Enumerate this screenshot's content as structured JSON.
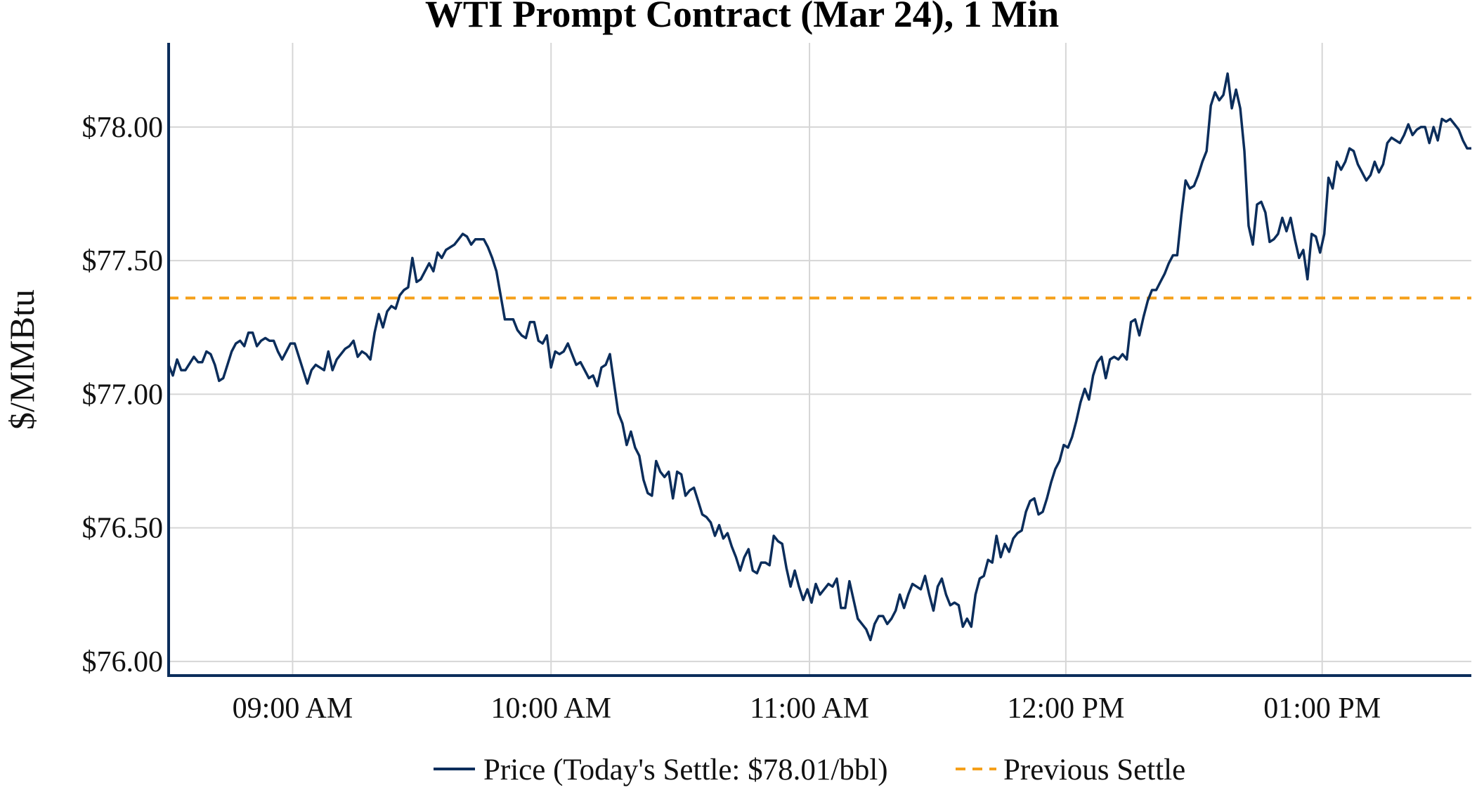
{
  "chart_data": {
    "type": "line",
    "title": "WTI Prompt Contract (Mar 24), 1 Min",
    "xlabel": "",
    "ylabel": "$/MMBtu",
    "ylim": [
      75.947,
      78.315
    ],
    "xlim": [
      0,
      310
    ],
    "x_ticks": [
      {
        "value": 29.5,
        "label": "09:00 AM"
      },
      {
        "value": 91,
        "label": "10:00 AM"
      },
      {
        "value": 152.5,
        "label": "11:00 AM"
      },
      {
        "value": 213.5,
        "label": "12:00 PM"
      },
      {
        "value": 274.5,
        "label": "01:00 PM"
      }
    ],
    "y_ticks": [
      {
        "value": 76.0,
        "label": "$76.00"
      },
      {
        "value": 76.5,
        "label": "$76.50"
      },
      {
        "value": 77.0,
        "label": "$77.00"
      },
      {
        "value": 77.5,
        "label": "$77.50"
      },
      {
        "value": 78.0,
        "label": "$78.00"
      }
    ],
    "grid": true,
    "legend_position": "bottom-center",
    "series": [
      {
        "name": "Price (Today's Settle: $78.01/bbl)",
        "color": "#0b2d5b",
        "style": "solid",
        "points": [
          [
            0,
            77.11
          ],
          [
            1,
            77.07
          ],
          [
            2,
            77.13
          ],
          [
            3,
            77.09
          ],
          [
            4,
            77.09
          ],
          [
            6,
            77.14
          ],
          [
            7,
            77.12
          ],
          [
            8,
            77.12
          ],
          [
            9,
            77.16
          ],
          [
            10,
            77.15
          ],
          [
            11,
            77.11
          ],
          [
            12,
            77.05
          ],
          [
            13,
            77.06
          ],
          [
            15,
            77.16
          ],
          [
            16,
            77.19
          ],
          [
            17,
            77.2
          ],
          [
            18,
            77.18
          ],
          [
            19,
            77.23
          ],
          [
            20,
            77.23
          ],
          [
            21,
            77.18
          ],
          [
            22,
            77.2
          ],
          [
            23,
            77.21
          ],
          [
            24,
            77.2
          ],
          [
            25,
            77.2
          ],
          [
            26,
            77.16
          ],
          [
            27,
            77.13
          ],
          [
            28,
            77.16
          ],
          [
            29,
            77.19
          ],
          [
            30,
            77.19
          ],
          [
            32,
            77.09
          ],
          [
            33,
            77.04
          ],
          [
            34,
            77.09
          ],
          [
            35,
            77.11
          ],
          [
            36,
            77.1
          ],
          [
            37,
            77.09
          ],
          [
            38,
            77.16
          ],
          [
            39,
            77.09
          ],
          [
            40,
            77.13
          ],
          [
            42,
            77.17
          ],
          [
            43,
            77.18
          ],
          [
            44,
            77.2
          ],
          [
            45,
            77.14
          ],
          [
            46,
            77.16
          ],
          [
            47,
            77.15
          ],
          [
            48,
            77.13
          ],
          [
            49,
            77.23
          ],
          [
            50,
            77.3
          ],
          [
            51,
            77.25
          ],
          [
            52,
            77.31
          ],
          [
            53,
            77.33
          ],
          [
            54,
            77.32
          ],
          [
            55,
            77.37
          ],
          [
            56,
            77.39
          ],
          [
            57,
            77.4
          ],
          [
            58,
            77.51
          ],
          [
            59,
            77.42
          ],
          [
            60,
            77.43
          ],
          [
            61,
            77.46
          ],
          [
            62,
            77.49
          ],
          [
            63,
            77.46
          ],
          [
            64,
            77.53
          ],
          [
            65,
            77.51
          ],
          [
            66,
            77.54
          ],
          [
            67,
            77.55
          ],
          [
            68,
            77.56
          ],
          [
            69,
            77.58
          ],
          [
            70,
            77.6
          ],
          [
            71,
            77.59
          ],
          [
            72,
            77.56
          ],
          [
            73,
            77.58
          ],
          [
            75,
            77.58
          ],
          [
            76,
            77.55
          ],
          [
            77,
            77.51
          ],
          [
            78,
            77.46
          ],
          [
            79,
            77.37
          ],
          [
            80,
            77.28
          ],
          [
            81,
            77.28
          ],
          [
            82,
            77.28
          ],
          [
            83,
            77.24
          ],
          [
            84,
            77.22
          ],
          [
            85,
            77.21
          ],
          [
            86,
            77.27
          ],
          [
            87,
            77.27
          ],
          [
            88,
            77.2
          ],
          [
            89,
            77.19
          ],
          [
            90,
            77.22
          ],
          [
            91,
            77.1
          ],
          [
            92,
            77.16
          ],
          [
            93,
            77.15
          ],
          [
            94,
            77.16
          ],
          [
            95,
            77.19
          ],
          [
            96,
            77.15
          ],
          [
            97,
            77.11
          ],
          [
            98,
            77.12
          ],
          [
            99,
            77.09
          ],
          [
            100,
            77.06
          ],
          [
            101,
            77.07
          ],
          [
            102,
            77.03
          ],
          [
            103,
            77.1
          ],
          [
            104,
            77.11
          ],
          [
            105,
            77.15
          ],
          [
            106,
            77.04
          ],
          [
            107,
            76.93
          ],
          [
            108,
            76.89
          ],
          [
            109,
            76.81
          ],
          [
            110,
            76.86
          ],
          [
            111,
            76.8
          ],
          [
            112,
            76.77
          ],
          [
            113,
            76.68
          ],
          [
            114,
            76.63
          ],
          [
            115,
            76.62
          ],
          [
            116,
            76.75
          ],
          [
            117,
            76.71
          ],
          [
            118,
            76.69
          ],
          [
            119,
            76.71
          ],
          [
            120,
            76.61
          ],
          [
            121,
            76.71
          ],
          [
            122,
            76.7
          ],
          [
            123,
            76.62
          ],
          [
            124,
            76.64
          ],
          [
            125,
            76.65
          ],
          [
            126,
            76.6
          ],
          [
            127,
            76.55
          ],
          [
            128,
            76.54
          ],
          [
            129,
            76.52
          ],
          [
            130,
            76.47
          ],
          [
            131,
            76.51
          ],
          [
            132,
            76.46
          ],
          [
            133,
            76.48
          ],
          [
            134,
            76.43
          ],
          [
            135,
            76.39
          ],
          [
            136,
            76.34
          ],
          [
            137,
            76.39
          ],
          [
            138,
            76.42
          ],
          [
            139,
            76.34
          ],
          [
            140,
            76.33
          ],
          [
            141,
            76.37
          ],
          [
            142,
            76.37
          ],
          [
            143,
            76.36
          ],
          [
            144,
            76.47
          ],
          [
            145,
            76.45
          ],
          [
            146,
            76.44
          ],
          [
            147,
            76.35
          ],
          [
            148,
            76.28
          ],
          [
            149,
            76.34
          ],
          [
            150,
            76.28
          ],
          [
            151,
            76.23
          ],
          [
            152,
            76.27
          ],
          [
            153,
            76.22
          ],
          [
            154,
            76.29
          ],
          [
            155,
            76.25
          ],
          [
            156,
            76.27
          ],
          [
            157,
            76.29
          ],
          [
            158,
            76.28
          ],
          [
            159,
            76.31
          ],
          [
            160,
            76.2
          ],
          [
            161,
            76.2
          ],
          [
            162,
            76.3
          ],
          [
            163,
            76.23
          ],
          [
            164,
            76.16
          ],
          [
            165,
            76.14
          ],
          [
            166,
            76.12
          ],
          [
            167,
            76.08
          ],
          [
            168,
            76.14
          ],
          [
            169,
            76.17
          ],
          [
            170,
            76.17
          ],
          [
            171,
            76.14
          ],
          [
            172,
            76.16
          ],
          [
            173,
            76.19
          ],
          [
            174,
            76.25
          ],
          [
            175,
            76.2
          ],
          [
            176,
            76.25
          ],
          [
            177,
            76.29
          ],
          [
            178,
            76.28
          ],
          [
            179,
            76.27
          ],
          [
            180,
            76.32
          ],
          [
            181,
            76.25
          ],
          [
            182,
            76.19
          ],
          [
            183,
            76.28
          ],
          [
            184,
            76.31
          ],
          [
            185,
            76.25
          ],
          [
            186,
            76.21
          ],
          [
            187,
            76.22
          ],
          [
            188,
            76.21
          ],
          [
            189,
            76.13
          ],
          [
            190,
            76.16
          ],
          [
            191,
            76.13
          ],
          [
            192,
            76.25
          ],
          [
            193,
            76.31
          ],
          [
            194,
            76.32
          ],
          [
            195,
            76.38
          ],
          [
            196,
            76.37
          ],
          [
            197,
            76.47
          ],
          [
            198,
            76.39
          ],
          [
            199,
            76.44
          ],
          [
            200,
            76.41
          ],
          [
            201,
            76.46
          ],
          [
            202,
            76.48
          ],
          [
            203,
            76.49
          ],
          [
            204,
            76.56
          ],
          [
            205,
            76.6
          ],
          [
            206,
            76.61
          ],
          [
            207,
            76.55
          ],
          [
            208,
            76.56
          ],
          [
            209,
            76.61
          ],
          [
            210,
            76.67
          ],
          [
            211,
            76.72
          ],
          [
            212,
            76.75
          ],
          [
            213,
            76.81
          ],
          [
            214,
            76.8
          ],
          [
            215,
            76.84
          ],
          [
            216,
            76.9
          ],
          [
            217,
            76.97
          ],
          [
            218,
            77.02
          ],
          [
            219,
            76.98
          ],
          [
            220,
            77.07
          ],
          [
            221,
            77.12
          ],
          [
            222,
            77.14
          ],
          [
            223,
            77.06
          ],
          [
            224,
            77.13
          ],
          [
            225,
            77.14
          ],
          [
            226,
            77.13
          ],
          [
            227,
            77.15
          ],
          [
            228,
            77.13
          ],
          [
            229,
            77.27
          ],
          [
            230,
            77.28
          ],
          [
            231,
            77.22
          ],
          [
            232,
            77.29
          ],
          [
            233,
            77.35
          ],
          [
            234,
            77.39
          ],
          [
            235,
            77.39
          ],
          [
            236,
            77.42
          ],
          [
            237,
            77.45
          ],
          [
            238,
            77.49
          ],
          [
            239,
            77.52
          ],
          [
            240,
            77.52
          ],
          [
            241,
            77.67
          ],
          [
            242,
            77.8
          ],
          [
            243,
            77.77
          ],
          [
            244,
            77.78
          ],
          [
            245,
            77.82
          ],
          [
            246,
            77.87
          ],
          [
            247,
            77.91
          ],
          [
            248,
            78.08
          ],
          [
            249,
            78.13
          ],
          [
            250,
            78.1
          ],
          [
            251,
            78.12
          ],
          [
            252,
            78.2
          ],
          [
            253,
            78.07
          ],
          [
            254,
            78.14
          ],
          [
            255,
            78.07
          ],
          [
            256,
            77.91
          ],
          [
            257,
            77.63
          ],
          [
            258,
            77.56
          ],
          [
            259,
            77.71
          ],
          [
            260,
            77.72
          ],
          [
            261,
            77.68
          ],
          [
            262,
            77.57
          ],
          [
            263,
            77.58
          ],
          [
            264,
            77.6
          ],
          [
            265,
            77.66
          ],
          [
            266,
            77.61
          ],
          [
            267,
            77.66
          ],
          [
            268,
            77.58
          ],
          [
            269,
            77.51
          ],
          [
            270,
            77.54
          ],
          [
            271,
            77.43
          ],
          [
            272,
            77.6
          ],
          [
            273,
            77.59
          ],
          [
            274,
            77.53
          ],
          [
            275,
            77.6
          ],
          [
            276,
            77.81
          ],
          [
            277,
            77.77
          ],
          [
            278,
            77.87
          ],
          [
            279,
            77.84
          ],
          [
            280,
            77.87
          ],
          [
            281,
            77.92
          ],
          [
            282,
            77.91
          ],
          [
            283,
            77.86
          ],
          [
            284,
            77.83
          ],
          [
            285,
            77.8
          ],
          [
            286,
            77.82
          ],
          [
            287,
            77.87
          ],
          [
            288,
            77.83
          ],
          [
            289,
            77.86
          ],
          [
            290,
            77.94
          ],
          [
            291,
            77.96
          ],
          [
            292,
            77.95
          ],
          [
            293,
            77.94
          ],
          [
            294,
            77.97
          ],
          [
            295,
            78.01
          ],
          [
            296,
            77.97
          ],
          [
            297,
            77.99
          ],
          [
            298,
            78.0
          ],
          [
            299,
            78.0
          ],
          [
            300,
            77.94
          ],
          [
            301,
            78.0
          ],
          [
            302,
            77.95
          ],
          [
            303,
            78.03
          ],
          [
            304,
            78.02
          ],
          [
            305,
            78.03
          ],
          [
            306,
            78.01
          ],
          [
            307,
            77.99
          ],
          [
            308,
            77.95
          ],
          [
            309,
            77.92
          ],
          [
            310,
            77.92
          ]
        ]
      },
      {
        "name": "Previous Settle",
        "color": "#f5a01a",
        "style": "dashed",
        "value": 77.36
      }
    ]
  }
}
